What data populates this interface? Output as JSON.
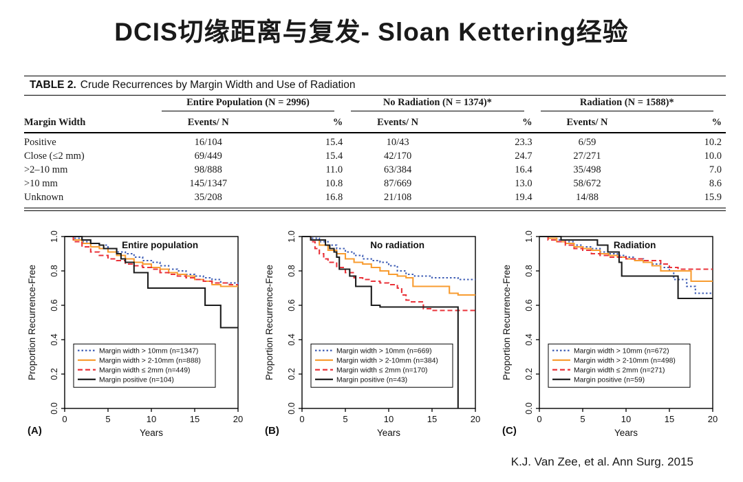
{
  "title": "DCIS切缘距离与复发- Sloan Kettering经验",
  "citation": "K.J. Van Zee, et al. Ann Surg. 2015",
  "table": {
    "caption_label": "TABLE 2.",
    "caption_text": "Crude Recurrences by Margin Width and Use of Radiation",
    "row_header": "Margin Width",
    "groups": [
      "Entire Population (N = 2996)",
      "No Radiation (N = 1374)*",
      "Radiation (N = 1588)*"
    ],
    "sub_headers": [
      "Events/ N",
      "%"
    ],
    "rows": [
      {
        "label": "Positive",
        "cells": [
          "16/104",
          "15.4",
          "10/43",
          "23.3",
          "6/59",
          "10.2"
        ]
      },
      {
        "label": "Close (≤2 mm)",
        "cells": [
          "69/449",
          "15.4",
          "42/170",
          "24.7",
          "27/271",
          "10.0"
        ]
      },
      {
        "label": ">2–10 mm",
        "cells": [
          "98/888",
          "11.0",
          "63/384",
          "16.4",
          "35/498",
          "7.0"
        ]
      },
      {
        "label": ">10 mm",
        "cells": [
          "145/1347",
          "10.8",
          "87/669",
          "13.0",
          "58/672",
          "8.6"
        ]
      },
      {
        "label": "Unknown",
        "cells": [
          "35/208",
          "16.8",
          "21/108",
          "19.4",
          "14/88",
          "15.9"
        ]
      }
    ]
  },
  "colors": {
    "blue": "#3f5eb5",
    "orange": "#f89c30",
    "red": "#e93239",
    "black": "#1c1c1c"
  },
  "chart_data": [
    {
      "type": "line",
      "panel_label": "(A)",
      "title": "Entire population",
      "xlabel": "Years",
      "ylabel": "Proportion Recurrence-Free",
      "xlim": [
        0,
        20
      ],
      "ylim": [
        0,
        1
      ],
      "xticks": [
        0,
        5,
        10,
        15,
        20
      ],
      "yticks": [
        0.0,
        0.2,
        0.4,
        0.6,
        0.8,
        1.0
      ],
      "grid": false,
      "legend_position": "lower-left",
      "series": [
        {
          "name": "Margin width > 10mm (n=1347)",
          "color": "#3f5eb5",
          "style": "dotted",
          "points": [
            [
              0,
              1
            ],
            [
              1,
              0.99
            ],
            [
              2,
              0.97
            ],
            [
              3,
              0.96
            ],
            [
              4,
              0.95
            ],
            [
              5,
              0.93
            ],
            [
              6,
              0.91
            ],
            [
              7,
              0.9
            ],
            [
              8,
              0.88
            ],
            [
              9,
              0.86
            ],
            [
              10,
              0.85
            ],
            [
              11,
              0.83
            ],
            [
              12,
              0.81
            ],
            [
              13,
              0.8
            ],
            [
              14,
              0.78
            ],
            [
              15,
              0.77
            ],
            [
              16,
              0.76
            ],
            [
              17,
              0.75
            ],
            [
              18,
              0.73
            ],
            [
              19,
              0.73
            ],
            [
              20,
              0.72
            ]
          ]
        },
        {
          "name": "Margin width > 2-10mm (n=888)",
          "color": "#f89c30",
          "style": "solid",
          "points": [
            [
              0,
              1
            ],
            [
              1,
              0.98
            ],
            [
              2,
              0.96
            ],
            [
              3,
              0.94
            ],
            [
              4,
              0.93
            ],
            [
              5,
              0.91
            ],
            [
              6,
              0.89
            ],
            [
              7,
              0.87
            ],
            [
              8,
              0.85
            ],
            [
              9,
              0.84
            ],
            [
              10,
              0.82
            ],
            [
              11,
              0.81
            ],
            [
              12,
              0.79
            ],
            [
              13,
              0.78
            ],
            [
              14,
              0.77
            ],
            [
              15,
              0.75
            ],
            [
              16,
              0.74
            ],
            [
              17,
              0.72
            ],
            [
              18,
              0.71
            ],
            [
              20,
              0.71
            ]
          ]
        },
        {
          "name": "Margin width ≤ 2mm (n=449)",
          "color": "#e93239",
          "style": "dashed",
          "points": [
            [
              0,
              1
            ],
            [
              1,
              0.97
            ],
            [
              2,
              0.94
            ],
            [
              3,
              0.91
            ],
            [
              4,
              0.89
            ],
            [
              5,
              0.87
            ],
            [
              6,
              0.86
            ],
            [
              7,
              0.84
            ],
            [
              8,
              0.83
            ],
            [
              9,
              0.82
            ],
            [
              10,
              0.81
            ],
            [
              11,
              0.79
            ],
            [
              12,
              0.78
            ],
            [
              13,
              0.77
            ],
            [
              14,
              0.76
            ],
            [
              15,
              0.75
            ],
            [
              16,
              0.74
            ],
            [
              17,
              0.73
            ],
            [
              18,
              0.73
            ],
            [
              19,
              0.72
            ],
            [
              20,
              0.72
            ]
          ]
        },
        {
          "name": "Margin positive (n=104)",
          "color": "#1c1c1c",
          "style": "solid",
          "points": [
            [
              0,
              1
            ],
            [
              1,
              1
            ],
            [
              2,
              0.98
            ],
            [
              3,
              0.96
            ],
            [
              4,
              0.95
            ],
            [
              4.5,
              0.93
            ],
            [
              5.8,
              0.93
            ],
            [
              6,
              0.9
            ],
            [
              6.5,
              0.87
            ],
            [
              7,
              0.85
            ],
            [
              7.9,
              0.85
            ],
            [
              8,
              0.79
            ],
            [
              9.4,
              0.79
            ],
            [
              9.6,
              0.7
            ],
            [
              16,
              0.7
            ],
            [
              16.2,
              0.6
            ],
            [
              17.8,
              0.6
            ],
            [
              18,
              0.47
            ],
            [
              20,
              0.47
            ]
          ]
        }
      ]
    },
    {
      "type": "line",
      "panel_label": "(B)",
      "title": "No radiation",
      "xlabel": "Years",
      "ylabel": "Proportion Recurrence-Free",
      "xlim": [
        0,
        20
      ],
      "ylim": [
        0,
        1
      ],
      "xticks": [
        0,
        5,
        10,
        15,
        20
      ],
      "yticks": [
        0.0,
        0.2,
        0.4,
        0.6,
        0.8,
        1.0
      ],
      "grid": false,
      "legend_position": "lower-left",
      "series": [
        {
          "name": "Margin width > 10mm (n=669)",
          "color": "#3f5eb5",
          "style": "dotted",
          "points": [
            [
              0,
              1
            ],
            [
              1,
              0.99
            ],
            [
              2,
              0.97
            ],
            [
              3,
              0.95
            ],
            [
              4,
              0.93
            ],
            [
              5,
              0.91
            ],
            [
              6,
              0.89
            ],
            [
              7,
              0.87
            ],
            [
              8,
              0.86
            ],
            [
              9,
              0.85
            ],
            [
              10,
              0.83
            ],
            [
              11,
              0.8
            ],
            [
              12,
              0.78
            ],
            [
              13,
              0.77
            ],
            [
              15,
              0.76
            ],
            [
              18,
              0.75
            ],
            [
              20,
              0.75
            ]
          ]
        },
        {
          "name": "Margin width > 2-10mm (n=384)",
          "color": "#f89c30",
          "style": "solid",
          "points": [
            [
              0,
              1
            ],
            [
              1,
              0.98
            ],
            [
              2,
              0.95
            ],
            [
              3,
              0.92
            ],
            [
              4,
              0.9
            ],
            [
              5,
              0.87
            ],
            [
              6,
              0.85
            ],
            [
              7,
              0.84
            ],
            [
              8,
              0.82
            ],
            [
              9,
              0.8
            ],
            [
              10,
              0.78
            ],
            [
              11,
              0.77
            ],
            [
              12,
              0.76
            ],
            [
              12.8,
              0.71
            ],
            [
              16.8,
              0.71
            ],
            [
              17,
              0.67
            ],
            [
              18,
              0.66
            ],
            [
              20,
              0.66
            ]
          ]
        },
        {
          "name": "Margin width ≤ 2mm (n=170)",
          "color": "#e93239",
          "style": "dashed",
          "points": [
            [
              0,
              1
            ],
            [
              1,
              0.97
            ],
            [
              1.5,
              0.93
            ],
            [
              2,
              0.9
            ],
            [
              2.5,
              0.87
            ],
            [
              3,
              0.85
            ],
            [
              4,
              0.82
            ],
            [
              5,
              0.79
            ],
            [
              6,
              0.76
            ],
            [
              7,
              0.75
            ],
            [
              8,
              0.74
            ],
            [
              9,
              0.73
            ],
            [
              10,
              0.72
            ],
            [
              11,
              0.7
            ],
            [
              11.5,
              0.66
            ],
            [
              12,
              0.63
            ],
            [
              12.5,
              0.62
            ],
            [
              13.8,
              0.62
            ],
            [
              14,
              0.58
            ],
            [
              15,
              0.57
            ],
            [
              20,
              0.57
            ]
          ]
        },
        {
          "name": "Margin positive (n=43)",
          "color": "#1c1c1c",
          "style": "solid",
          "points": [
            [
              0,
              1
            ],
            [
              0.9,
              1
            ],
            [
              1,
              0.98
            ],
            [
              2.5,
              0.98
            ],
            [
              2.7,
              0.95
            ],
            [
              3.2,
              0.93
            ],
            [
              3.7,
              0.91
            ],
            [
              4,
              0.88
            ],
            [
              4.3,
              0.81
            ],
            [
              5.3,
              0.81
            ],
            [
              5.5,
              0.77
            ],
            [
              6,
              0.77
            ],
            [
              6.2,
              0.71
            ],
            [
              7.9,
              0.71
            ],
            [
              8,
              0.6
            ],
            [
              9,
              0.59
            ],
            [
              17.9,
              0.59
            ],
            [
              18,
              0
            ]
          ]
        }
      ]
    },
    {
      "type": "line",
      "panel_label": "(C)",
      "title": "Radiation",
      "xlabel": "Years",
      "ylabel": "Proportion Recurrence-Free",
      "xlim": [
        0,
        20
      ],
      "ylim": [
        0,
        1
      ],
      "xticks": [
        0,
        5,
        10,
        15,
        20
      ],
      "yticks": [
        0.0,
        0.2,
        0.4,
        0.6,
        0.8,
        1.0
      ],
      "grid": false,
      "legend_position": "lower-left",
      "series": [
        {
          "name": "Margin width > 10mm (n=672)",
          "color": "#3f5eb5",
          "style": "dotted",
          "points": [
            [
              0,
              1
            ],
            [
              1,
              0.99
            ],
            [
              2,
              0.98
            ],
            [
              3,
              0.97
            ],
            [
              4,
              0.95
            ],
            [
              5,
              0.94
            ],
            [
              6,
              0.93
            ],
            [
              7,
              0.91
            ],
            [
              8,
              0.9
            ],
            [
              9,
              0.89
            ],
            [
              10,
              0.88
            ],
            [
              11,
              0.87
            ],
            [
              12,
              0.85
            ],
            [
              13,
              0.84
            ],
            [
              14,
              0.82
            ],
            [
              15,
              0.8
            ],
            [
              15.5,
              0.75
            ],
            [
              16.8,
              0.75
            ],
            [
              17,
              0.71
            ],
            [
              18,
              0.67
            ],
            [
              20,
              0.67
            ]
          ]
        },
        {
          "name": "Margin width > 2-10mm (n=498)",
          "color": "#f89c30",
          "style": "solid",
          "points": [
            [
              0,
              1
            ],
            [
              1,
              0.99
            ],
            [
              2,
              0.97
            ],
            [
              3,
              0.96
            ],
            [
              4,
              0.94
            ],
            [
              5,
              0.93
            ],
            [
              6,
              0.92
            ],
            [
              7,
              0.9
            ],
            [
              8,
              0.89
            ],
            [
              9,
              0.88
            ],
            [
              10,
              0.87
            ],
            [
              11,
              0.86
            ],
            [
              12,
              0.85
            ],
            [
              13,
              0.83
            ],
            [
              14,
              0.8
            ],
            [
              17.3,
              0.8
            ],
            [
              17.5,
              0.74
            ],
            [
              20,
              0.74
            ]
          ]
        },
        {
          "name": "Margin width ≤ 2mm (n=271)",
          "color": "#e93239",
          "style": "dashed",
          "points": [
            [
              0,
              1
            ],
            [
              1,
              0.98
            ],
            [
              2,
              0.97
            ],
            [
              3,
              0.95
            ],
            [
              4,
              0.93
            ],
            [
              5,
              0.92
            ],
            [
              6,
              0.9
            ],
            [
              7,
              0.89
            ],
            [
              8,
              0.88
            ],
            [
              10,
              0.87
            ],
            [
              12,
              0.86
            ],
            [
              14,
              0.84
            ],
            [
              15,
              0.82
            ],
            [
              16,
              0.81
            ],
            [
              20,
              0.81
            ]
          ]
        },
        {
          "name": "Margin positive (n=59)",
          "color": "#1c1c1c",
          "style": "solid",
          "points": [
            [
              0,
              1
            ],
            [
              2.3,
              1
            ],
            [
              2.5,
              0.98
            ],
            [
              6.5,
              0.98
            ],
            [
              6.7,
              0.95
            ],
            [
              7.7,
              0.95
            ],
            [
              7.9,
              0.91
            ],
            [
              9,
              0.91
            ],
            [
              9.2,
              0.85
            ],
            [
              9.5,
              0.77
            ],
            [
              15.8,
              0.77
            ],
            [
              16,
              0.64
            ],
            [
              20,
              0.64
            ]
          ]
        }
      ]
    }
  ]
}
